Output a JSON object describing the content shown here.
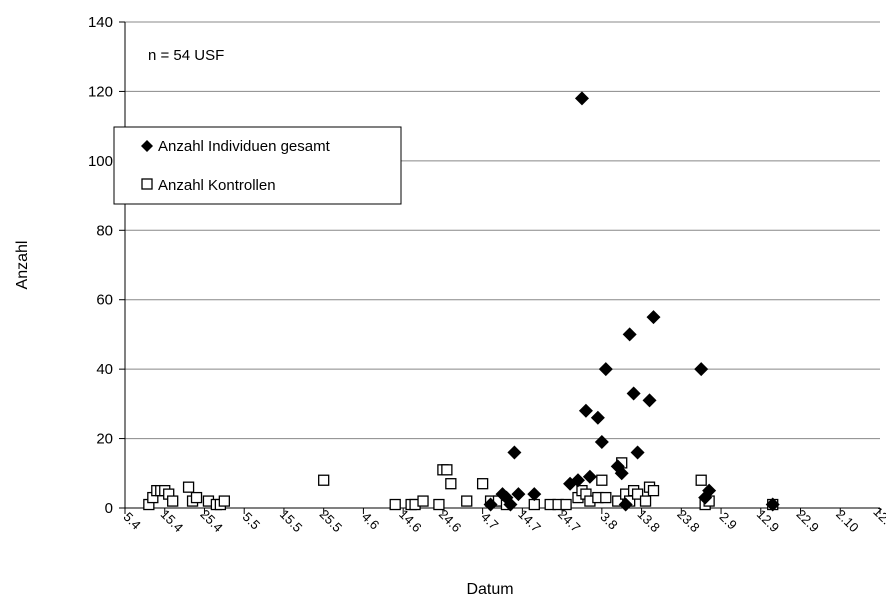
{
  "chart_data": {
    "type": "scatter",
    "title": "",
    "xlabel": "Datum",
    "ylabel": "Anzahl",
    "ylim": [
      0,
      140
    ],
    "y_ticks": [
      0,
      20,
      40,
      60,
      80,
      100,
      120,
      140
    ],
    "x_tick_labels": [
      "5.4",
      "15.4",
      "25.4",
      "5.5",
      "15.5",
      "25.5",
      "4.6",
      "14.6",
      "24.6",
      "4.7",
      "14.7",
      "24.7",
      "3.8",
      "13.8",
      "23.8",
      "2.9",
      "12.9",
      "22.9",
      "2.10",
      "12.10"
    ],
    "x_tick_days": [
      95,
      105,
      115,
      125,
      135,
      145,
      155,
      165,
      175,
      185,
      195,
      205,
      215,
      225,
      235,
      245,
      255,
      265,
      275,
      285
    ],
    "xlim": [
      95,
      285
    ],
    "grid": "horizontal",
    "legend_position": "upper-left",
    "annotation": "n = 54 USF",
    "series": [
      {
        "name": "Anzahl Individuen gesamt",
        "marker": "filled-diamond",
        "color": "#000000",
        "points": [
          [
            187,
            1
          ],
          [
            190,
            4
          ],
          [
            191,
            3
          ],
          [
            192,
            1
          ],
          [
            193,
            16
          ],
          [
            194,
            4
          ],
          [
            198,
            4
          ],
          [
            207,
            7
          ],
          [
            209,
            8
          ],
          [
            210,
            118
          ],
          [
            211,
            28
          ],
          [
            212,
            9
          ],
          [
            214,
            26
          ],
          [
            215,
            19
          ],
          [
            216,
            40
          ],
          [
            219,
            12
          ],
          [
            220,
            10
          ],
          [
            221,
            1
          ],
          [
            222,
            50
          ],
          [
            223,
            33
          ],
          [
            224,
            16
          ],
          [
            227,
            31
          ],
          [
            228,
            55
          ],
          [
            240,
            40
          ],
          [
            241,
            3
          ],
          [
            242,
            5
          ],
          [
            258,
            1
          ]
        ]
      },
      {
        "name": "Anzahl Kontrollen",
        "marker": "open-square",
        "color": "#000000",
        "points": [
          [
            101,
            1
          ],
          [
            102,
            3
          ],
          [
            103,
            5
          ],
          [
            104,
            5
          ],
          [
            105,
            5
          ],
          [
            106,
            4
          ],
          [
            107,
            2
          ],
          [
            111,
            6
          ],
          [
            112,
            2
          ],
          [
            113,
            3
          ],
          [
            116,
            2
          ],
          [
            118,
            1
          ],
          [
            119,
            1
          ],
          [
            120,
            2
          ],
          [
            145,
            8
          ],
          [
            163,
            1
          ],
          [
            167,
            1
          ],
          [
            168,
            1
          ],
          [
            170,
            2
          ],
          [
            174,
            1
          ],
          [
            175,
            11
          ],
          [
            176,
            11
          ],
          [
            177,
            7
          ],
          [
            181,
            2
          ],
          [
            185,
            7
          ],
          [
            187,
            2
          ],
          [
            189,
            2
          ],
          [
            191,
            1
          ],
          [
            198,
            1
          ],
          [
            202,
            1
          ],
          [
            204,
            1
          ],
          [
            206,
            1
          ],
          [
            209,
            3
          ],
          [
            210,
            5
          ],
          [
            211,
            4
          ],
          [
            212,
            2
          ],
          [
            214,
            3
          ],
          [
            215,
            8
          ],
          [
            216,
            3
          ],
          [
            219,
            2
          ],
          [
            220,
            13
          ],
          [
            221,
            4
          ],
          [
            222,
            2
          ],
          [
            223,
            5
          ],
          [
            224,
            4
          ],
          [
            226,
            2
          ],
          [
            227,
            6
          ],
          [
            228,
            5
          ],
          [
            240,
            8
          ],
          [
            241,
            1
          ],
          [
            242,
            2
          ],
          [
            258,
            1
          ]
        ]
      }
    ]
  }
}
